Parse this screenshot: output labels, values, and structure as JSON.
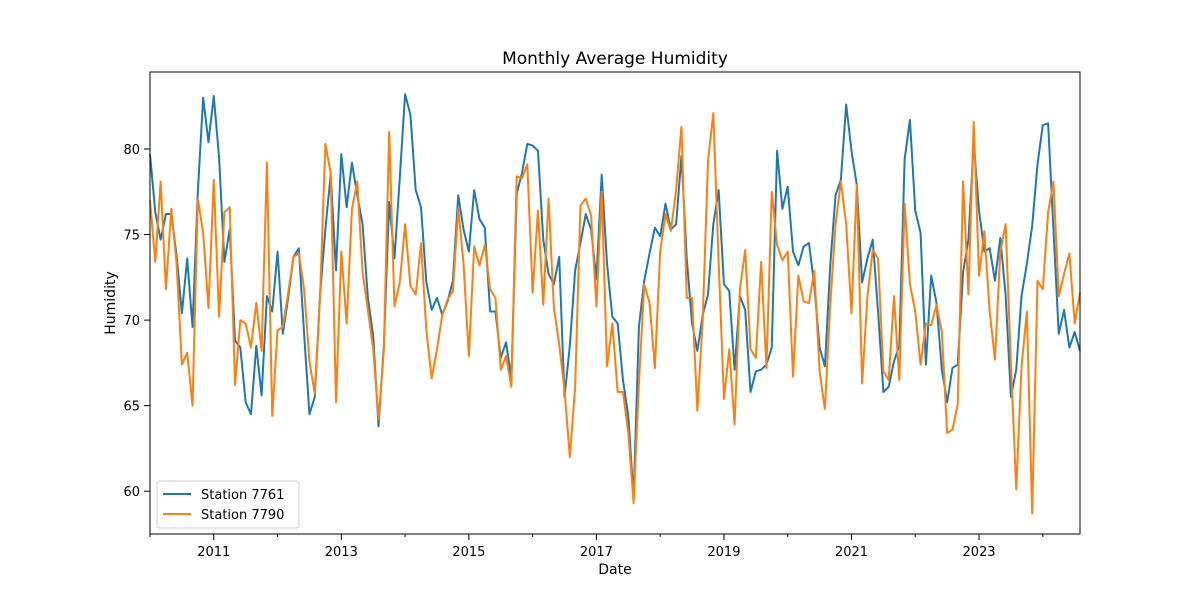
{
  "chart_data": {
    "type": "line",
    "title": "Monthly Average Humidity",
    "xlabel": "Date",
    "ylabel": "Humidity",
    "xlim": [
      "2010-01",
      "2024-08"
    ],
    "ylim": [
      57.5,
      84.5
    ],
    "x_ticks": [
      "2011",
      "2013",
      "2015",
      "2017",
      "2019",
      "2021",
      "2023"
    ],
    "y_ticks": [
      "60",
      "65",
      "70",
      "75",
      "80"
    ],
    "grid": false,
    "legend_position": "lower-left",
    "x": [
      "2010-01",
      "2010-02",
      "2010-03",
      "2010-04",
      "2010-05",
      "2010-06",
      "2010-07",
      "2010-08",
      "2010-09",
      "2010-10",
      "2010-11",
      "2010-12",
      "2011-01",
      "2011-02",
      "2011-03",
      "2011-04",
      "2011-05",
      "2011-06",
      "2011-07",
      "2011-08",
      "2011-09",
      "2011-10",
      "2011-11",
      "2011-12",
      "2012-01",
      "2012-02",
      "2012-03",
      "2012-04",
      "2012-05",
      "2012-06",
      "2012-07",
      "2012-08",
      "2012-09",
      "2012-10",
      "2012-11",
      "2012-12",
      "2013-01",
      "2013-02",
      "2013-03",
      "2013-04",
      "2013-05",
      "2013-06",
      "2013-07",
      "2013-08",
      "2013-09",
      "2013-10",
      "2013-11",
      "2013-12",
      "2014-01",
      "2014-02",
      "2014-03",
      "2014-04",
      "2014-05",
      "2014-06",
      "2014-07",
      "2014-08",
      "2014-09",
      "2014-10",
      "2014-11",
      "2014-12",
      "2015-01",
      "2015-02",
      "2015-03",
      "2015-04",
      "2015-05",
      "2015-06",
      "2015-07",
      "2015-08",
      "2015-09",
      "2015-10",
      "2015-11",
      "2015-12",
      "2016-01",
      "2016-02",
      "2016-03",
      "2016-04",
      "2016-05",
      "2016-06",
      "2016-07",
      "2016-08",
      "2016-09",
      "2016-10",
      "2016-11",
      "2016-12",
      "2017-01",
      "2017-02",
      "2017-03",
      "2017-04",
      "2017-05",
      "2017-06",
      "2017-07",
      "2017-08",
      "2017-09",
      "2017-10",
      "2017-11",
      "2017-12",
      "2018-01",
      "2018-02",
      "2018-03",
      "2018-04",
      "2018-05",
      "2018-06",
      "2018-07",
      "2018-08",
      "2018-09",
      "2018-10",
      "2018-11",
      "2018-12",
      "2019-01",
      "2019-02",
      "2019-03",
      "2019-04",
      "2019-05",
      "2019-06",
      "2019-07",
      "2019-08",
      "2019-09",
      "2019-10",
      "2019-11",
      "2019-12",
      "2020-01",
      "2020-02",
      "2020-03",
      "2020-04",
      "2020-05",
      "2020-06",
      "2020-07",
      "2020-08",
      "2020-09",
      "2020-10",
      "2020-11",
      "2020-12",
      "2021-01",
      "2021-02",
      "2021-03",
      "2021-04",
      "2021-05",
      "2021-06",
      "2021-07",
      "2021-08",
      "2021-09",
      "2021-10",
      "2021-11",
      "2021-12",
      "2022-01",
      "2022-02",
      "2022-03",
      "2022-04",
      "2022-05",
      "2022-06",
      "2022-07",
      "2022-08",
      "2022-09",
      "2022-10",
      "2022-11",
      "2022-12",
      "2023-01",
      "2023-02",
      "2023-03",
      "2023-04",
      "2023-05",
      "2023-06",
      "2023-07",
      "2023-08",
      "2023-09",
      "2023-10",
      "2023-11",
      "2023-12",
      "2024-01",
      "2024-02",
      "2024-03",
      "2024-04",
      "2024-05",
      "2024-06",
      "2024-07",
      "2024-08"
    ],
    "series": [
      {
        "name": "Station 7761",
        "color": "#1f77b4",
        "values": [
          79.7,
          76.3,
          74.7,
          76.2,
          76.2,
          73.8,
          70.4,
          73.6,
          69.6,
          77.5,
          83.0,
          80.4,
          83.1,
          79.5,
          73.4,
          75.3,
          68.8,
          68.4,
          65.2,
          64.5,
          68.5,
          65.6,
          71.4,
          70.5,
          74.0,
          69.2,
          71.3,
          73.7,
          74.2,
          69.2,
          64.5,
          65.5,
          71.5,
          75.3,
          78.5,
          72.9,
          79.7,
          76.6,
          79.2,
          77.3,
          75.6,
          71.3,
          69.1,
          63.8,
          68.5,
          76.9,
          73.6,
          78.3,
          83.2,
          82.0,
          77.6,
          76.6,
          72.2,
          70.6,
          71.3,
          70.3,
          71.1,
          72.3,
          77.3,
          75.3,
          74.0,
          77.6,
          75.9,
          75.4,
          70.5,
          70.5,
          67.8,
          68.7,
          66.6,
          77.4,
          78.6,
          80.3,
          80.2,
          79.9,
          74.7,
          72.7,
          72.1,
          73.7,
          65.5,
          68.5,
          72.9,
          74.5,
          76.2,
          75.3,
          72.4,
          78.5,
          73.3,
          70.2,
          69.8,
          66.5,
          64.4,
          59.6,
          69.6,
          72.3,
          73.9,
          75.4,
          74.9,
          76.8,
          75.3,
          75.6,
          79.6,
          73.6,
          69.8,
          68.2,
          70.3,
          71.5,
          75.6,
          77.6,
          72.1,
          71.7,
          67.1,
          71.4,
          70.6,
          65.8,
          67.0,
          67.1,
          67.4,
          68.4,
          79.9,
          76.5,
          77.8,
          74.0,
          73.2,
          74.3,
          74.5,
          72.0,
          68.4,
          67.3,
          73.2,
          77.3,
          78.2,
          82.6,
          79.9,
          77.9,
          72.2,
          73.6,
          74.7,
          70.5,
          65.8,
          66.1,
          67.6,
          68.5,
          79.4,
          81.7,
          76.4,
          75.1,
          67.4,
          72.6,
          71.0,
          67.1,
          65.2,
          67.2,
          67.4,
          72.8,
          74.7,
          80.4,
          76.4,
          74.0,
          74.2,
          72.3,
          74.8,
          71.5,
          65.5,
          67.1,
          71.4,
          73.3,
          75.5,
          79.1,
          81.4,
          81.5,
          75.3,
          69.2,
          70.6,
          68.4,
          69.3,
          68.2
        ]
      },
      {
        "name": "Station 7790",
        "color": "#ff7f0e",
        "values": [
          77.0,
          73.4,
          78.1,
          71.8,
          76.5,
          73.3,
          67.4,
          68.1,
          65.0,
          77.1,
          75.1,
          70.7,
          78.2,
          70.2,
          76.3,
          76.6,
          66.2,
          70.0,
          69.8,
          68.4,
          71.0,
          68.2,
          79.2,
          64.4,
          69.4,
          69.6,
          71.6,
          73.7,
          73.9,
          71.8,
          67.6,
          65.7,
          71.4,
          80.3,
          78.6,
          65.2,
          74.0,
          69.8,
          76.5,
          78.1,
          72.8,
          70.6,
          68.3,
          64.2,
          68.2,
          81.0,
          70.8,
          72.2,
          75.6,
          72.0,
          71.5,
          74.5,
          69.4,
          66.6,
          68.3,
          70.3,
          71.2,
          71.7,
          76.5,
          73.3,
          67.9,
          74.3,
          73.2,
          74.4,
          71.8,
          71.3,
          67.1,
          67.9,
          66.1,
          78.4,
          78.3,
          79.1,
          71.6,
          76.4,
          70.9,
          77.1,
          70.7,
          68.6,
          65.9,
          62.0,
          66.1,
          76.7,
          77.1,
          76.1,
          70.8,
          77.5,
          67.3,
          69.8,
          65.8,
          65.8,
          63.4,
          59.3,
          66.3,
          72.1,
          71.0,
          67.2,
          74.0,
          76.2,
          75.2,
          77.6,
          81.3,
          71.3,
          71.3,
          64.7,
          70.0,
          79.3,
          82.1,
          73.4,
          65.4,
          68.3,
          63.9,
          71.8,
          74.1,
          68.3,
          67.8,
          73.4,
          67.2,
          77.5,
          74.4,
          73.5,
          74.0,
          66.7,
          72.6,
          71.1,
          71.0,
          72.9,
          67.0,
          64.8,
          70.9,
          75.6,
          78.1,
          75.6,
          70.4,
          77.9,
          66.3,
          71.4,
          74.1,
          73.6,
          67.0,
          66.5,
          71.4,
          66.5,
          76.8,
          72.1,
          70.5,
          67.4,
          69.8,
          69.7,
          70.9,
          69.3,
          63.4,
          63.6,
          65.1,
          78.1,
          71.5,
          81.6,
          72.6,
          75.2,
          70.5,
          67.7,
          74.0,
          75.6,
          67.5,
          60.1,
          67.3,
          70.5,
          58.7,
          72.3,
          71.8,
          76.3,
          78.1,
          71.4,
          72.7,
          73.9,
          69.8,
          71.6
        ]
      }
    ]
  }
}
